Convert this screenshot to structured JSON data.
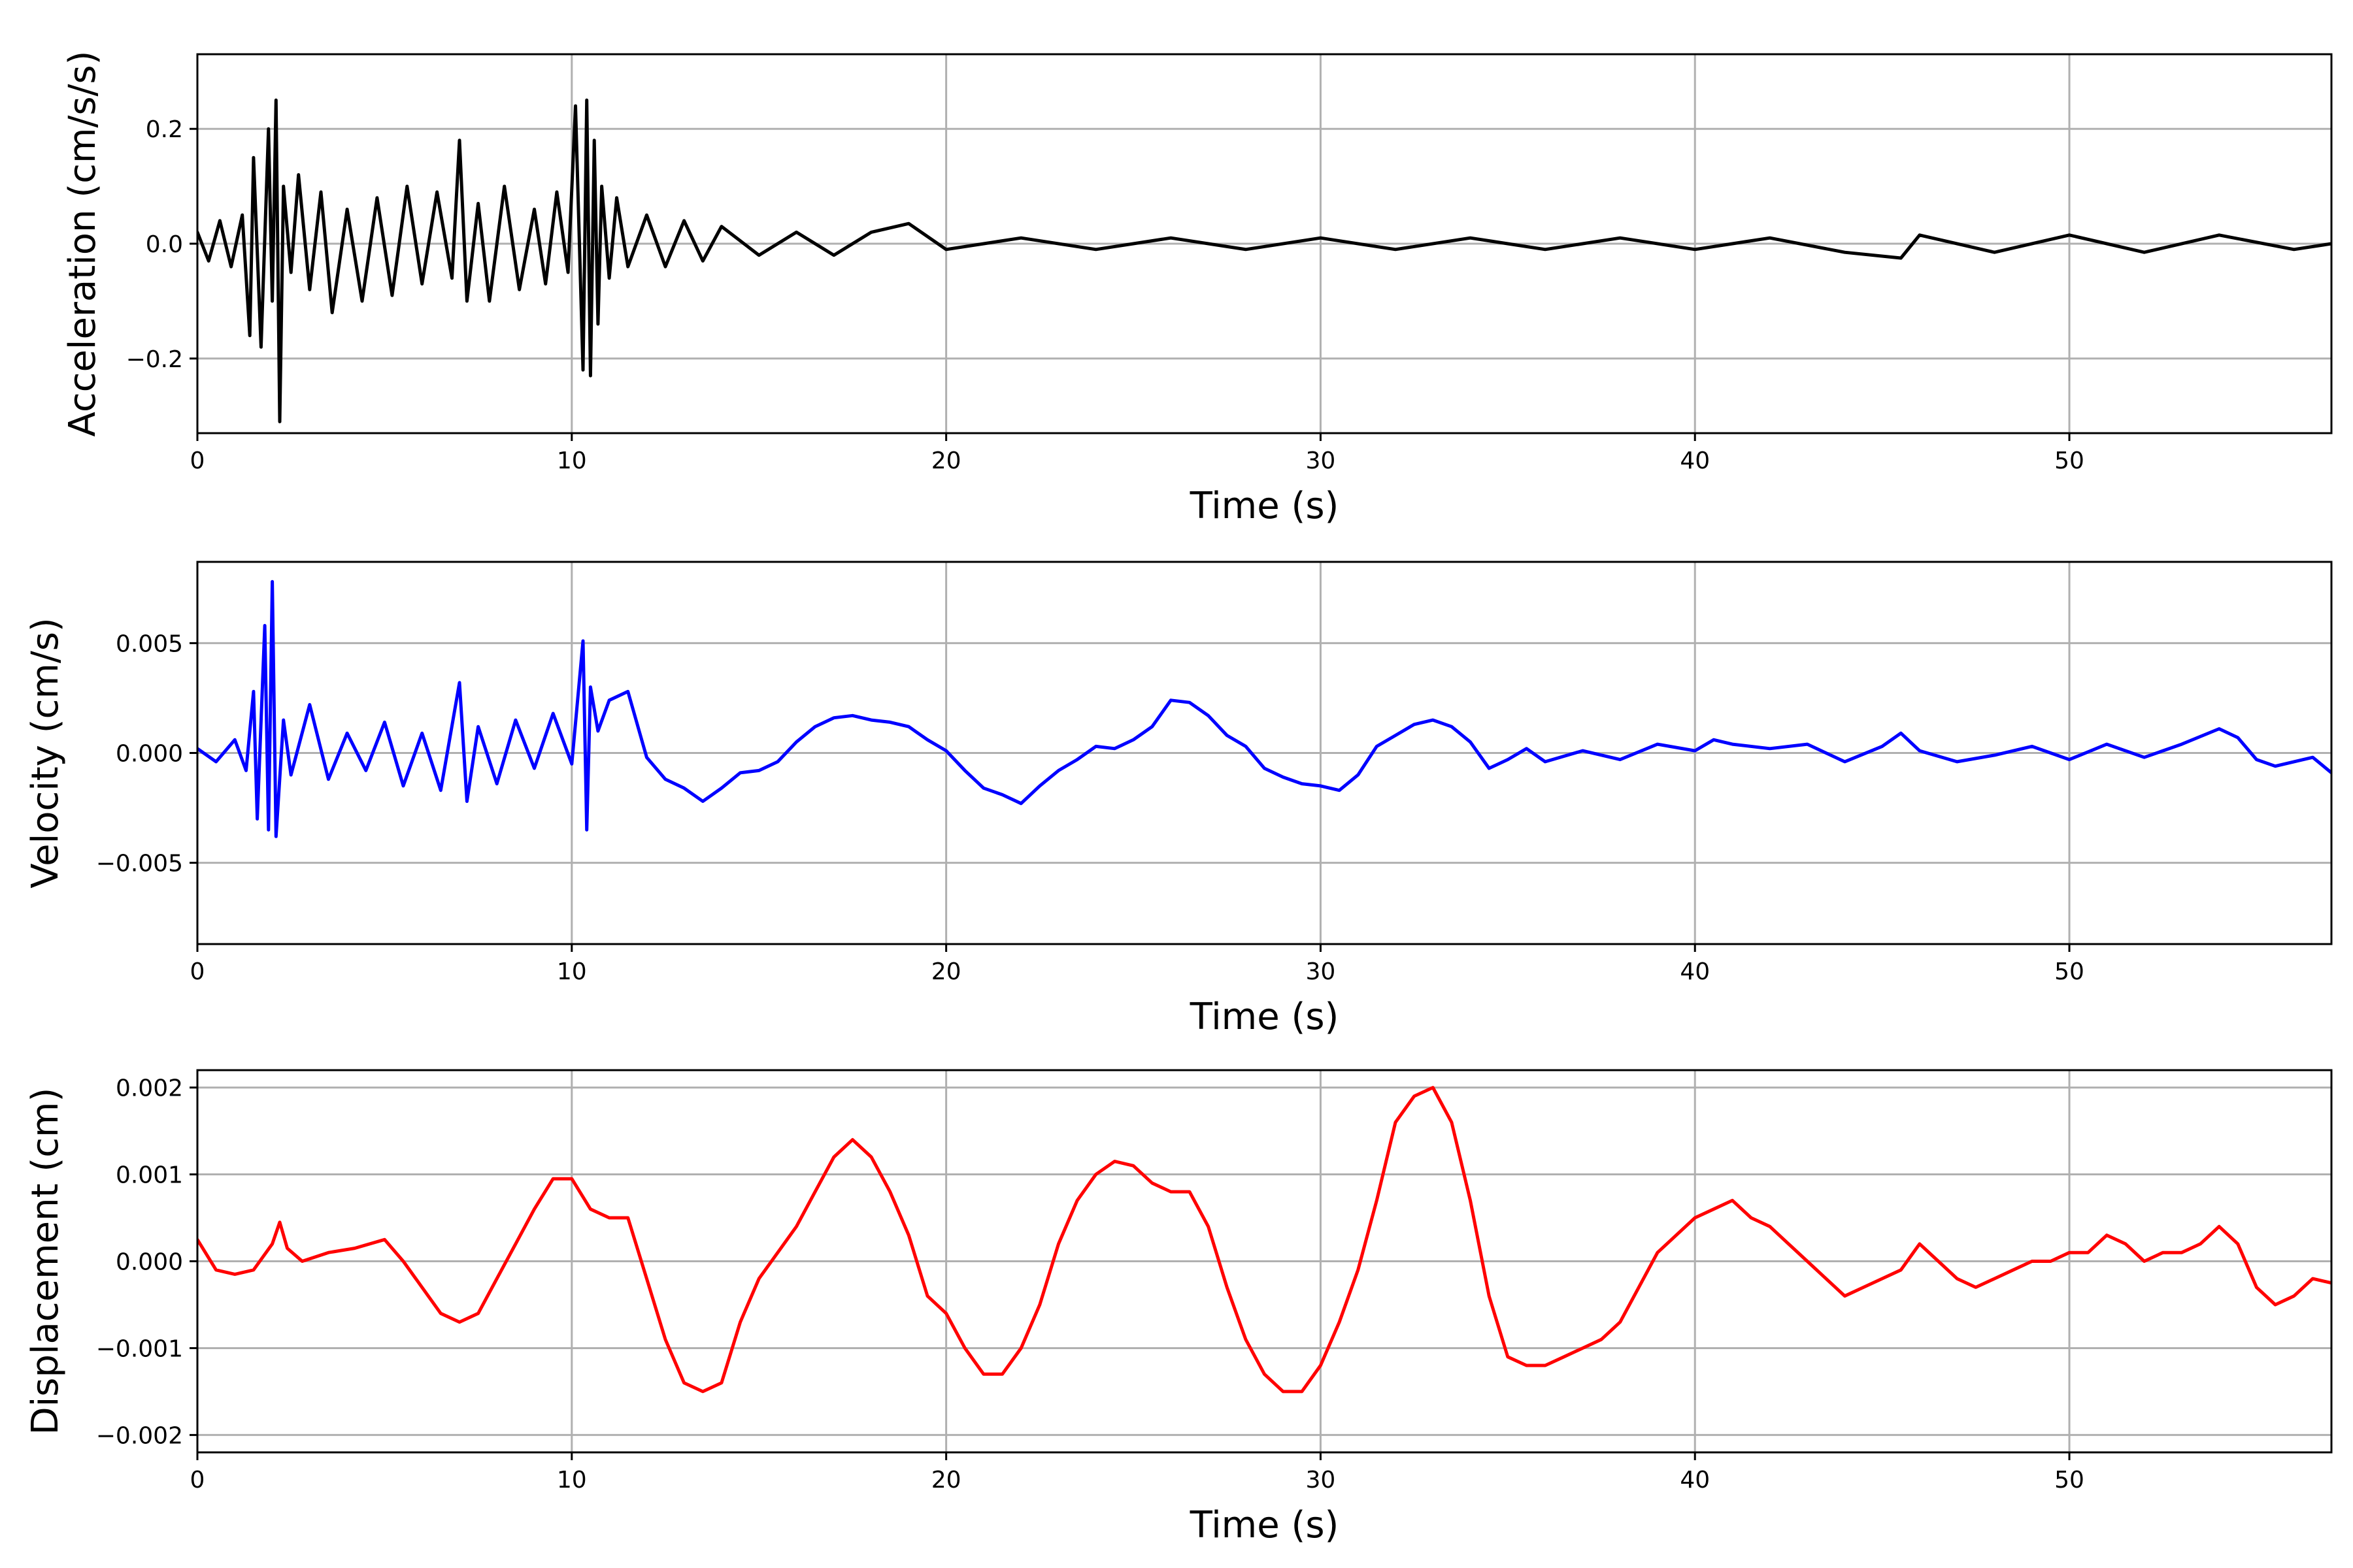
{
  "chart_data": [
    {
      "type": "line",
      "xlabel": "Time (s)",
      "ylabel": "Acceleration (cm/s/s)",
      "xlim": [
        0,
        57
      ],
      "ylim": [
        -0.33,
        0.33
      ],
      "xticks": [
        0,
        10,
        20,
        30,
        40,
        50
      ],
      "xtick_labels": [
        "0",
        "10",
        "20",
        "30",
        "40",
        "50"
      ],
      "yticks": [
        -0.2,
        0.0,
        0.2
      ],
      "ytick_labels": [
        "−0.2",
        "0.0",
        "0.2"
      ],
      "grid": true,
      "series": [
        {
          "color": "#000000",
          "x": [
            0,
            0.3,
            0.6,
            0.9,
            1.2,
            1.4,
            1.5,
            1.7,
            1.9,
            2.0,
            2.1,
            2.2,
            2.3,
            2.5,
            2.7,
            3.0,
            3.3,
            3.6,
            4.0,
            4.4,
            4.8,
            5.2,
            5.6,
            6.0,
            6.4,
            6.8,
            7.0,
            7.2,
            7.5,
            7.8,
            8.2,
            8.6,
            9.0,
            9.3,
            9.6,
            9.9,
            10.1,
            10.3,
            10.4,
            10.5,
            10.6,
            10.7,
            10.8,
            11.0,
            11.2,
            11.5,
            12.0,
            12.5,
            13.0,
            13.5,
            14.0,
            15.0,
            16.0,
            17.0,
            18.0,
            19.0,
            20.0,
            22.0,
            24.0,
            26.0,
            28.0,
            30.0,
            32.0,
            34.0,
            36.0,
            38.0,
            40.0,
            42.0,
            44.0,
            45.5,
            46.0,
            48.0,
            50.0,
            52.0,
            54.0,
            56.0,
            57.0
          ],
          "y": [
            0.02,
            -0.03,
            0.04,
            -0.04,
            0.05,
            -0.16,
            0.15,
            -0.18,
            0.2,
            -0.1,
            0.25,
            -0.31,
            0.1,
            -0.05,
            0.12,
            -0.08,
            0.09,
            -0.12,
            0.06,
            -0.1,
            0.08,
            -0.09,
            0.1,
            -0.07,
            0.09,
            -0.06,
            0.18,
            -0.1,
            0.07,
            -0.1,
            0.1,
            -0.08,
            0.06,
            -0.07,
            0.09,
            -0.05,
            0.24,
            -0.22,
            0.25,
            -0.23,
            0.18,
            -0.14,
            0.1,
            -0.06,
            0.08,
            -0.04,
            0.05,
            -0.04,
            0.04,
            -0.03,
            0.03,
            -0.02,
            0.02,
            -0.02,
            0.02,
            0.035,
            -0.01,
            0.01,
            -0.01,
            0.01,
            -0.01,
            0.01,
            -0.01,
            0.01,
            -0.01,
            0.01,
            -0.01,
            0.01,
            -0.015,
            -0.025,
            0.015,
            -0.015,
            0.015,
            -0.015,
            0.015,
            -0.01,
            0.0
          ]
        }
      ]
    },
    {
      "type": "line",
      "xlabel": "Time (s)",
      "ylabel": "Velocity (cm/s)",
      "xlim": [
        0,
        57
      ],
      "ylim": [
        -0.0087,
        0.0087
      ],
      "xticks": [
        0,
        10,
        20,
        30,
        40,
        50
      ],
      "xtick_labels": [
        "0",
        "10",
        "20",
        "30",
        "40",
        "50"
      ],
      "yticks": [
        -0.005,
        0.0,
        0.005
      ],
      "ytick_labels": [
        "−0.005",
        "0.000",
        "0.005"
      ],
      "grid": true,
      "series": [
        {
          "color": "#0000ff",
          "x": [
            0,
            0.5,
            1.0,
            1.3,
            1.5,
            1.6,
            1.8,
            1.9,
            2.0,
            2.1,
            2.3,
            2.5,
            3.0,
            3.5,
            4.0,
            4.5,
            5.0,
            5.5,
            6.0,
            6.5,
            7.0,
            7.2,
            7.5,
            8.0,
            8.5,
            9.0,
            9.5,
            10.0,
            10.3,
            10.4,
            10.5,
            10.7,
            11.0,
            11.5,
            12.0,
            12.5,
            13.0,
            13.5,
            14.0,
            14.5,
            15.0,
            15.5,
            16.0,
            16.5,
            17.0,
            17.5,
            18.0,
            18.5,
            19.0,
            19.5,
            20.0,
            20.5,
            21.0,
            21.5,
            22.0,
            22.5,
            23.0,
            23.5,
            24.0,
            24.5,
            25.0,
            25.5,
            26.0,
            26.5,
            27.0,
            27.5,
            28.0,
            28.5,
            29.0,
            29.5,
            30.0,
            30.5,
            31.0,
            31.5,
            32.0,
            32.5,
            33.0,
            33.5,
            34.0,
            34.5,
            35.0,
            35.5,
            36.0,
            37.0,
            38.0,
            39.0,
            40.0,
            40.5,
            41.0,
            42.0,
            43.0,
            44.0,
            45.0,
            45.5,
            46.0,
            47.0,
            48.0,
            49.0,
            50.0,
            51.0,
            52.0,
            53.0,
            54.0,
            54.5,
            55.0,
            55.5,
            56.0,
            56.5,
            57.0
          ],
          "y": [
            0.0002,
            -0.0004,
            0.0006,
            -0.0008,
            0.0028,
            -0.003,
            0.0058,
            -0.0035,
            0.0078,
            -0.0038,
            0.0015,
            -0.001,
            0.0022,
            -0.0012,
            0.0009,
            -0.0008,
            0.0014,
            -0.0015,
            0.0009,
            -0.0017,
            0.0032,
            -0.0022,
            0.0012,
            -0.0014,
            0.0015,
            -0.0007,
            0.0018,
            -0.0005,
            0.0051,
            -0.0035,
            0.003,
            0.001,
            0.0024,
            0.0028,
            -0.0002,
            -0.0012,
            -0.0016,
            -0.0022,
            -0.0016,
            -0.0009,
            -0.0008,
            -0.0004,
            0.0005,
            0.0012,
            0.0016,
            0.0017,
            0.0015,
            0.0014,
            0.0012,
            0.0006,
            0.0001,
            -0.0008,
            -0.0016,
            -0.0019,
            -0.0023,
            -0.0015,
            -0.0008,
            -0.0003,
            0.0003,
            0.0002,
            0.0006,
            0.0012,
            0.0024,
            0.0023,
            0.0017,
            0.0008,
            0.0003,
            -0.0007,
            -0.0011,
            -0.0014,
            -0.0015,
            -0.0017,
            -0.001,
            0.0003,
            0.0008,
            0.0013,
            0.0015,
            0.0012,
            0.0005,
            -0.0007,
            -0.0003,
            0.0002,
            -0.0004,
            0.0001,
            -0.0003,
            0.0004,
            0.0001,
            0.0006,
            0.0004,
            0.0002,
            0.0004,
            -0.0004,
            0.0003,
            0.0009,
            0.0001,
            -0.0004,
            -0.0001,
            0.0003,
            -0.0003,
            0.0004,
            -0.0002,
            0.0004,
            0.0011,
            0.0007,
            -0.0003,
            -0.0006,
            -0.0004,
            -0.0002,
            -0.0009
          ]
        }
      ]
    },
    {
      "type": "line",
      "xlabel": "Time (s)",
      "ylabel": "Displacement (cm)",
      "xlim": [
        0,
        57
      ],
      "ylim": [
        -0.0022,
        0.0022
      ],
      "xticks": [
        0,
        10,
        20,
        30,
        40,
        50
      ],
      "xtick_labels": [
        "0",
        "10",
        "20",
        "30",
        "40",
        "50"
      ],
      "yticks": [
        -0.002,
        -0.001,
        0.0,
        0.001,
        0.002
      ],
      "ytick_labels": [
        "−0.002",
        "−0.001",
        "0.000",
        "0.001",
        "0.002"
      ],
      "grid": true,
      "series": [
        {
          "color": "#ff0000",
          "x": [
            0,
            0.5,
            1.0,
            1.5,
            2.0,
            2.2,
            2.4,
            2.8,
            3.5,
            4.2,
            5.0,
            5.5,
            6.0,
            6.5,
            7.0,
            7.5,
            8.0,
            8.5,
            9.0,
            9.5,
            10.0,
            10.5,
            11.0,
            11.5,
            12.0,
            12.5,
            13.0,
            13.5,
            14.0,
            14.5,
            15.0,
            15.5,
            16.0,
            16.5,
            17.0,
            17.5,
            18.0,
            18.5,
            19.0,
            19.5,
            20.0,
            20.5,
            21.0,
            21.5,
            22.0,
            22.5,
            23.0,
            23.5,
            24.0,
            24.5,
            25.0,
            25.5,
            26.0,
            26.5,
            27.0,
            27.5,
            28.0,
            28.5,
            29.0,
            29.5,
            30.0,
            30.5,
            31.0,
            31.5,
            32.0,
            32.5,
            33.0,
            33.5,
            34.0,
            34.5,
            35.0,
            35.5,
            36.0,
            36.5,
            37.0,
            37.5,
            38.0,
            38.5,
            39.0,
            39.5,
            40.0,
            40.5,
            41.0,
            41.5,
            42.0,
            42.5,
            43.0,
            43.5,
            44.0,
            44.5,
            45.0,
            45.5,
            46.0,
            46.5,
            47.0,
            47.5,
            48.0,
            48.5,
            49.0,
            49.5,
            50.0,
            50.5,
            51.0,
            51.5,
            52.0,
            52.5,
            53.0,
            53.5,
            54.0,
            54.5,
            55.0,
            55.5,
            56.0,
            56.5,
            57.0
          ],
          "y": [
            0.00025,
            -0.0001,
            -0.00015,
            -0.0001,
            0.0002,
            0.00045,
            0.00015,
            0.0,
            0.0001,
            0.00015,
            0.00025,
            0.0,
            -0.0003,
            -0.0006,
            -0.0007,
            -0.0006,
            -0.0002,
            0.0002,
            0.0006,
            0.00095,
            0.00095,
            0.0006,
            0.0005,
            0.0005,
            -0.0002,
            -0.0009,
            -0.0014,
            -0.0015,
            -0.0014,
            -0.0007,
            -0.0002,
            0.0001,
            0.0004,
            0.0008,
            0.0012,
            0.0014,
            0.0012,
            0.0008,
            0.0003,
            -0.0004,
            -0.0006,
            -0.001,
            -0.0013,
            -0.0013,
            -0.001,
            -0.0005,
            0.0002,
            0.0007,
            0.001,
            0.00115,
            0.0011,
            0.0009,
            0.0008,
            0.0008,
            0.0004,
            -0.0003,
            -0.0009,
            -0.0013,
            -0.0015,
            -0.0015,
            -0.0012,
            -0.0007,
            -0.0001,
            0.0007,
            0.0016,
            0.0019,
            0.002,
            0.0016,
            0.0007,
            -0.0004,
            -0.0011,
            -0.0012,
            -0.0012,
            -0.0011,
            -0.001,
            -0.0009,
            -0.0007,
            -0.0003,
            0.0001,
            0.0003,
            0.0005,
            0.0006,
            0.0007,
            0.0005,
            0.0004,
            0.0002,
            0.0,
            -0.0002,
            -0.0004,
            -0.0003,
            -0.0002,
            -0.0001,
            0.0002,
            0.0,
            -0.0002,
            -0.0003,
            -0.0002,
            -0.0001,
            0.0,
            0.0,
            0.0001,
            0.0001,
            0.0003,
            0.0002,
            0.0,
            0.0001,
            0.0001,
            0.0002,
            0.0004,
            0.0002,
            -0.0003,
            -0.0005,
            -0.0004,
            -0.0002,
            -0.00025
          ]
        }
      ]
    }
  ]
}
